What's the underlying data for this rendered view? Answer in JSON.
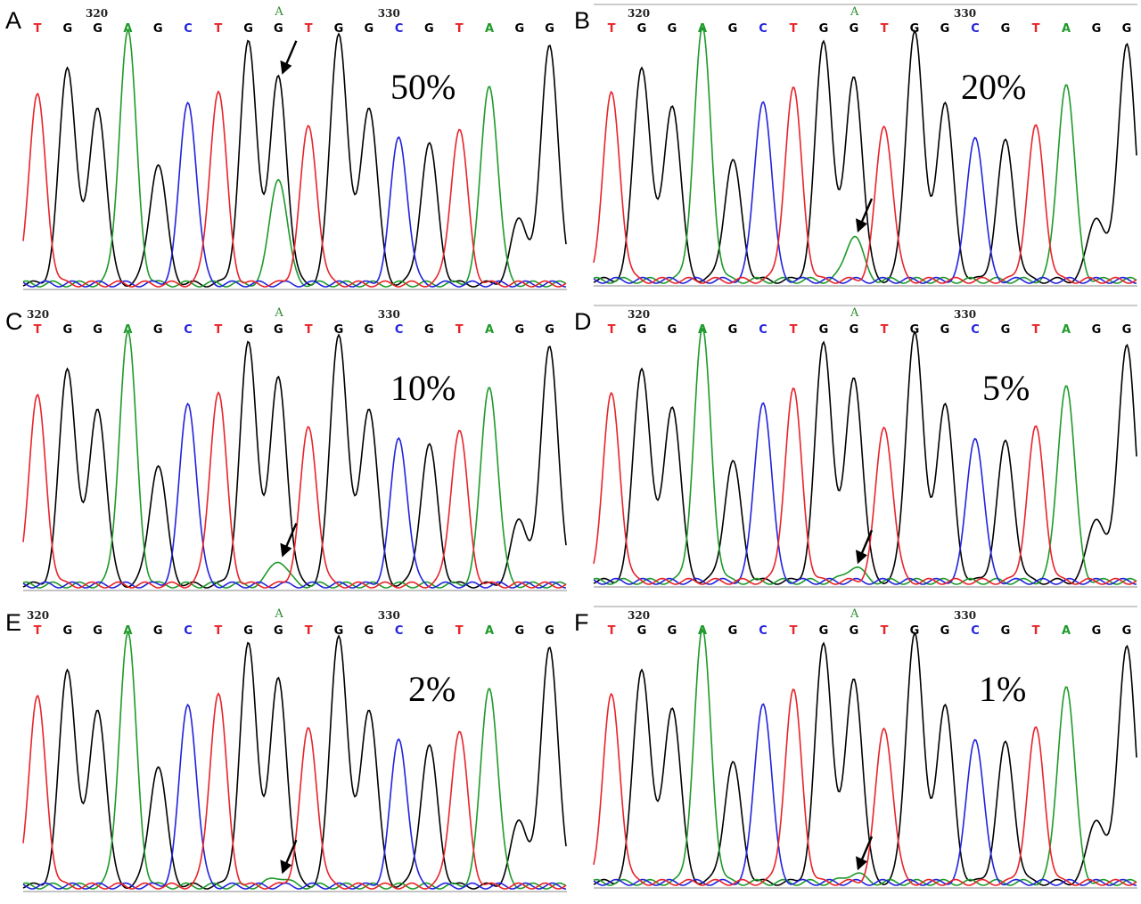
{
  "colors": {
    "T": "#e8242a",
    "G": "#000000",
    "A": "#1e9a2a",
    "C": "#2222dd"
  },
  "sequence": [
    "T",
    "G",
    "G",
    "A",
    "G",
    "C",
    "T",
    "G",
    "G",
    "T",
    "G",
    "G",
    "C",
    "G",
    "T",
    "A",
    "G",
    "G"
  ],
  "position_labels": [
    "320",
    "330"
  ],
  "mutant_label": "A",
  "peak_heights": [
    0.78,
    0.9,
    0.74,
    1.05,
    0.5,
    0.76,
    0.8,
    1.0,
    0.86,
    0.65,
    1.05,
    0.74,
    0.61,
    0.58,
    0.64,
    0.83,
    0.27,
    1.0
  ],
  "panels": [
    {
      "letter": "A",
      "percent": "50%",
      "mutant_fraction": 0.5,
      "variant": 0
    },
    {
      "letter": "B",
      "percent": "20%",
      "mutant_fraction": 0.2,
      "variant": 1
    },
    {
      "letter": "C",
      "percent": "10%",
      "mutant_fraction": 0.1,
      "variant": 0
    },
    {
      "letter": "D",
      "percent": "5%",
      "mutant_fraction": 0.05,
      "variant": 1
    },
    {
      "letter": "E",
      "percent": "2%",
      "mutant_fraction": 0.02,
      "variant": 0
    },
    {
      "letter": "F",
      "percent": "1%",
      "mutant_fraction": 0.01,
      "variant": 1
    }
  ]
}
